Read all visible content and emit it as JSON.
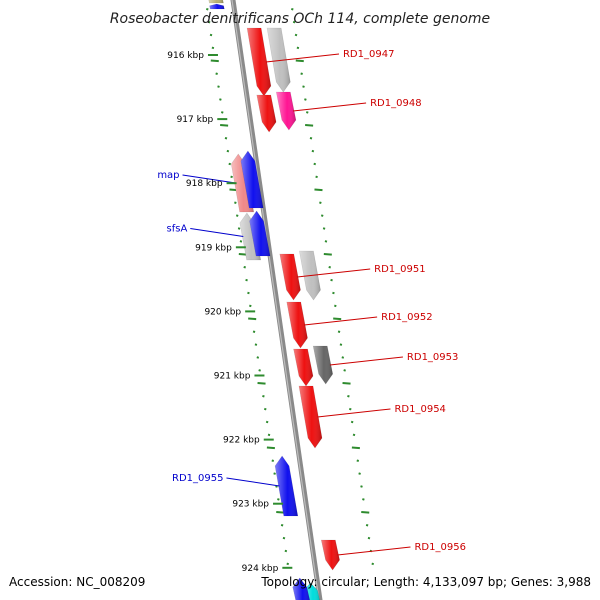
{
  "title": "Roseobacter denitrificans OCh 114, complete genome",
  "accession": "Accession: NC_008209",
  "summary": "Topology: circular; Length: 4,133,097 bp; Genes: 3,988",
  "colors": {
    "backbone": "#8a8a8a",
    "ticks": "#2e8b2e",
    "forward_label": "#0000cc",
    "reverse_label": "#cc0000"
  },
  "kbp_ticks": [
    "916 kbp",
    "917 kbp",
    "918 kbp",
    "919 kbp",
    "920 kbp",
    "921 kbp",
    "922 kbp",
    "923 kbp",
    "924 kbp"
  ],
  "genes": [
    {
      "id": "g-top-olive",
      "color": "#b8b070",
      "strand": "+",
      "track": 1,
      "from": -3,
      "to": 3,
      "label": ""
    },
    {
      "id": "g-top-blue",
      "color": "#1010ee",
      "strand": "+",
      "track": 1,
      "from": 4,
      "to": 9,
      "label": ""
    },
    {
      "id": "g-0947a",
      "color": "#ee1111",
      "strand": "-",
      "track": 1,
      "from": 28,
      "to": 96,
      "label": "RD1_0947"
    },
    {
      "id": "g-0947b",
      "color": "#c0c0c0",
      "strand": "-",
      "track": 2,
      "from": 28,
      "to": 92,
      "label": ""
    },
    {
      "id": "g-0948a",
      "color": "#ee1111",
      "strand": "-",
      "track": 1,
      "from": 95,
      "to": 132,
      "label": ""
    },
    {
      "id": "g-0948b",
      "color": "#ff1493",
      "strand": "-",
      "track": 2,
      "from": 92,
      "to": 130,
      "label": "RD1_0948"
    },
    {
      "id": "g-map",
      "color": "#f08888",
      "strand": "+",
      "track": 1,
      "from": 154,
      "to": 212,
      "label": "map"
    },
    {
      "id": "g-blue1",
      "color": "#1010ee",
      "strand": "+",
      "track": 2,
      "from": 151,
      "to": 208,
      "label": ""
    },
    {
      "id": "g-sfsA",
      "color": "#c0c0c0",
      "strand": "+",
      "track": 1,
      "from": 213,
      "to": 260,
      "label": "sfsA"
    },
    {
      "id": "g-blue2",
      "color": "#1010ee",
      "strand": "+",
      "track": 2,
      "from": 211,
      "to": 256,
      "label": ""
    },
    {
      "id": "g-0951a",
      "color": "#ee1111",
      "strand": "-",
      "track": 1,
      "from": 254,
      "to": 300,
      "label": "RD1_0951"
    },
    {
      "id": "g-0951b",
      "color": "#c0c0c0",
      "strand": "-",
      "track": 2,
      "from": 251,
      "to": 300,
      "label": ""
    },
    {
      "id": "g-0952",
      "color": "#ee1111",
      "strand": "-",
      "track": 1,
      "from": 302,
      "to": 348,
      "label": "RD1_0952"
    },
    {
      "id": "g-0953a",
      "color": "#ee1111",
      "strand": "-",
      "track": 1,
      "from": 349,
      "to": 386,
      "label": ""
    },
    {
      "id": "g-0953b",
      "color": "#666666",
      "strand": "-",
      "track": 2,
      "from": 346,
      "to": 384,
      "label": "RD1_0953"
    },
    {
      "id": "g-0954",
      "color": "#ee1111",
      "strand": "-",
      "track": 1,
      "from": 386,
      "to": 448,
      "label": "RD1_0954"
    },
    {
      "id": "g-0955",
      "color": "#1010ee",
      "strand": "+",
      "track": 1,
      "from": 456,
      "to": 516,
      "label": "RD1_0955"
    },
    {
      "id": "g-0956",
      "color": "#ee1111",
      "strand": "-",
      "track": 1,
      "from": 540,
      "to": 570,
      "label": "RD1_0956"
    },
    {
      "id": "g-bottom-cyan",
      "color": "#00dddd",
      "strand": "+",
      "track": 2,
      "from": 583,
      "to": 604,
      "label": ""
    },
    {
      "id": "g-bottom-blue",
      "color": "#1010ee",
      "strand": "+",
      "track": 1,
      "from": 578,
      "to": 604,
      "label": ""
    }
  ]
}
